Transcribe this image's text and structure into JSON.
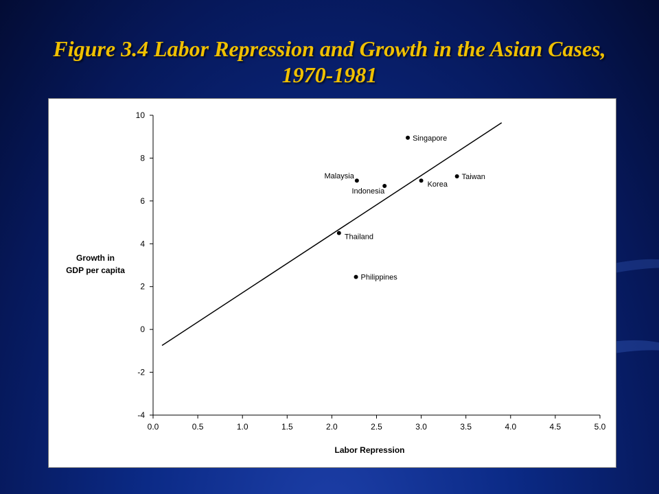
{
  "slide": {
    "title_line1": "Figure 3.4 Labor Repression and Growth in the Asian Cases,",
    "title_line2": "1970-1981"
  },
  "chart_data": {
    "type": "scatter",
    "xlabel": "Labor Repression",
    "ylabel_lines": [
      "Growth in",
      "GDP per capita"
    ],
    "xlim": [
      0.0,
      5.0
    ],
    "ylim": [
      -4,
      10
    ],
    "x_ticks": [
      "0.0",
      "0.5",
      "1.0",
      "1.5",
      "2.0",
      "2.5",
      "3.0",
      "3.5",
      "4.0",
      "4.5",
      "5.0"
    ],
    "y_ticks": [
      "10",
      "8",
      "6",
      "4",
      "2",
      "0",
      "-2",
      "-4"
    ],
    "grid": false,
    "points": [
      {
        "label": "Singapore",
        "x": 2.85,
        "y": 8.95,
        "label_pos": "right"
      },
      {
        "label": "Malaysia",
        "x": 2.28,
        "y": 6.95,
        "label_pos": "above-left"
      },
      {
        "label": "Indonesia",
        "x": 2.59,
        "y": 6.7,
        "label_pos": "below-left"
      },
      {
        "label": "Korea",
        "x": 3.0,
        "y": 6.95,
        "label_pos": "below-right"
      },
      {
        "label": "Taiwan",
        "x": 3.4,
        "y": 7.15,
        "label_pos": "right"
      },
      {
        "label": "Thailand",
        "x": 2.08,
        "y": 4.5,
        "label_pos": "below-right"
      },
      {
        "label": "Philippines",
        "x": 2.27,
        "y": 2.45,
        "label_pos": "right"
      }
    ],
    "trend_line": {
      "x": [
        0.1,
        3.9
      ],
      "y": [
        -0.75,
        9.65
      ]
    },
    "color": "#000000"
  }
}
